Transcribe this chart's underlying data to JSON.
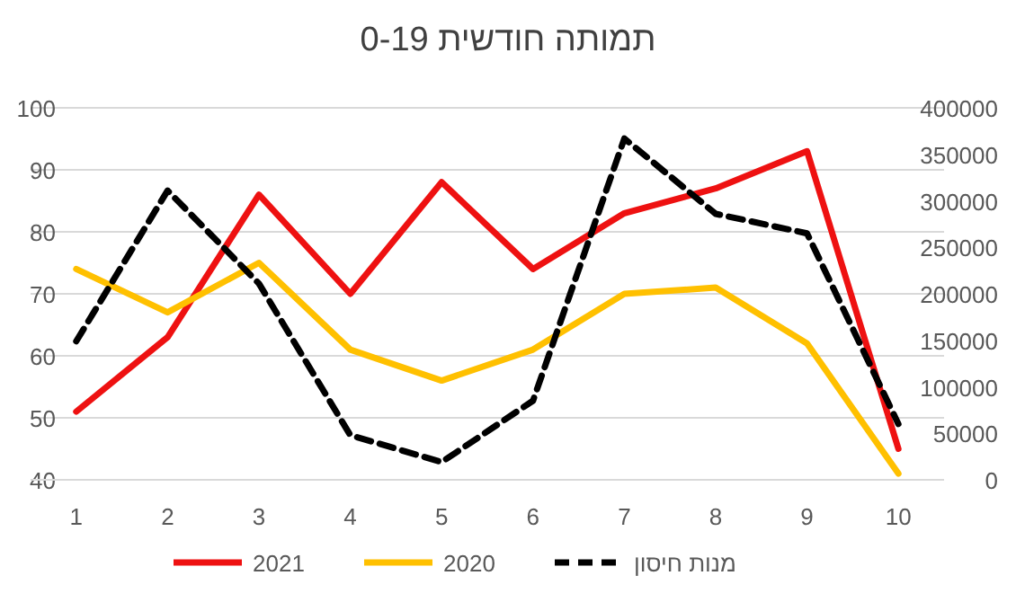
{
  "chart_data": {
    "type": "line",
    "title": "תמותה חודשית 0-19",
    "categories": [
      "1",
      "2",
      "3",
      "4",
      "5",
      "6",
      "7",
      "8",
      "9",
      "10"
    ],
    "series": [
      {
        "name": "2021",
        "color": "#ee1111",
        "values": [
          51,
          63,
          86,
          70,
          88,
          74,
          83,
          87,
          93,
          45
        ],
        "line_style": "solid"
      },
      {
        "name": "2020",
        "color": "#ffc000",
        "values": [
          74,
          67,
          75,
          61,
          56,
          61,
          70,
          71,
          62,
          41
        ],
        "line_style": "solid"
      },
      {
        "name": "מנות חיסון",
        "color": "#000000",
        "values": [
          149000,
          311000,
          211000,
          48000,
          19000,
          85000,
          367000,
          286000,
          265000,
          60000
        ],
        "axis": "y2",
        "line_style": "dashed"
      }
    ],
    "ylim": [
      40,
      100
    ],
    "yticks": [
      40,
      50,
      60,
      70,
      80,
      90,
      100
    ],
    "y2lim": [
      0,
      400000
    ],
    "y2ticks": [
      0,
      50000,
      100000,
      150000,
      200000,
      250000,
      300000,
      350000,
      400000
    ],
    "grid": "y",
    "legend": "bottom"
  }
}
